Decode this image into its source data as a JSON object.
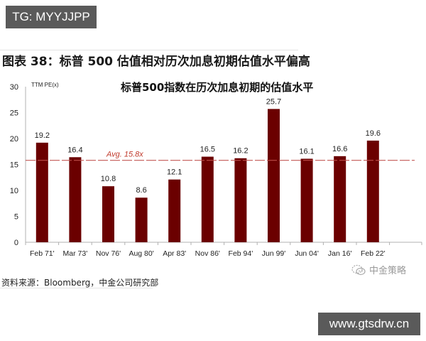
{
  "badge_top": {
    "text": "TG: MYYJJPP"
  },
  "figure": {
    "title": "图表 38：标普 500 估值相对历次加息初期估值水平偏高",
    "source": "资料来源：Bloomberg，中金公司研究部"
  },
  "watermark": {
    "text": "中金策略",
    "icon": "wechat-icon"
  },
  "badge_bottom": {
    "text": "www.gtsdrw.cn"
  },
  "colors": {
    "bar": "#6b0000",
    "avg_line": "#c0504d",
    "avg_label": "#c0392b",
    "axis": "#b0b0b0"
  },
  "chart_data": {
    "type": "bar",
    "title": "标普500指数在历次加息初期的估值水平",
    "ylabel": "TTM PE(x)",
    "xlabel": "",
    "categories": [
      "Feb 71'",
      "Mar 73'",
      "Nov 76'",
      "Aug 80'",
      "Apr 83'",
      "Nov 86'",
      "Feb 94'",
      "Jun 99'",
      "Jun 04'",
      "Jan 16'",
      "Feb 22'"
    ],
    "values": [
      19.2,
      16.4,
      10.8,
      8.6,
      12.1,
      16.5,
      16.2,
      25.7,
      16.1,
      16.6,
      19.6
    ],
    "data_labels": [
      "19.2",
      "16.4",
      "10.8",
      "8.6",
      "12.1",
      "16.5",
      "16.2",
      "25.7",
      "16.1",
      "16.6",
      "19.6"
    ],
    "yticks": [
      0,
      5,
      10,
      15,
      20,
      25,
      30
    ],
    "ylim": [
      0,
      30
    ],
    "grid": false,
    "legend": "none",
    "reference_line": {
      "value": 15.8,
      "label": "Avg. 15.8x",
      "style": "dashed"
    }
  }
}
